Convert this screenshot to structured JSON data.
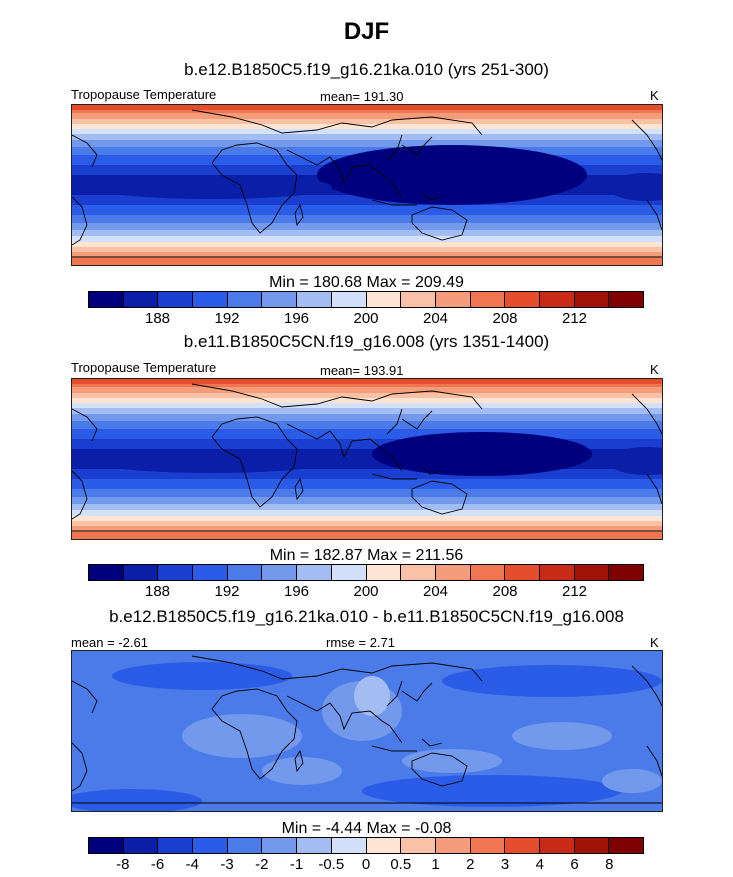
{
  "season": "DJF",
  "panels": [
    {
      "case_title": "b.e12.B1850C5.f19_g16.21ka.010 (yrs 251-300)",
      "variable": "Tropopause Temperature",
      "stat_left": "",
      "stat_center": "mean= 191.30",
      "units": "K",
      "minmax": "Min = 180.68 Max = 209.49",
      "colorbar_labels": [
        "188",
        "192",
        "196",
        "200",
        "204",
        "208",
        "212"
      ],
      "palette": "abs"
    },
    {
      "case_title": "b.e11.B1850C5CN.f19_g16.008 (yrs 1351-1400)",
      "variable": "Tropopause Temperature",
      "stat_left": "",
      "stat_center": "mean= 193.91",
      "units": "K",
      "minmax": "Min = 182.87 Max = 211.56",
      "colorbar_labels": [
        "188",
        "192",
        "196",
        "200",
        "204",
        "208",
        "212"
      ],
      "palette": "abs"
    },
    {
      "case_title": "b.e12.B1850C5.f19_g16.21ka.010 - b.e11.B1850C5CN.f19_g16.008",
      "variable": "",
      "stat_left": "mean =  -2.61",
      "stat_center": "rmse =   2.71",
      "units": "K",
      "minmax": "Min =  -4.44 Max =  -0.08",
      "colorbar_labels": [
        "-8",
        "-6",
        "-4",
        "-3",
        "-2",
        "-1",
        "-0.5",
        "0",
        "0.5",
        "1",
        "2",
        "3",
        "4",
        "6",
        "8"
      ],
      "palette": "diff"
    }
  ],
  "palette_colors": [
    "#00007f",
    "#0b1ea8",
    "#1a3fd0",
    "#2b5ce8",
    "#4a7be8",
    "#7399ec",
    "#a3bdf3",
    "#d2e0f9",
    "#fde4d3",
    "#f9c1a6",
    "#f59d7b",
    "#ef7650",
    "#e54e2c",
    "#c72a16",
    "#a11309",
    "#7f0000"
  ]
}
